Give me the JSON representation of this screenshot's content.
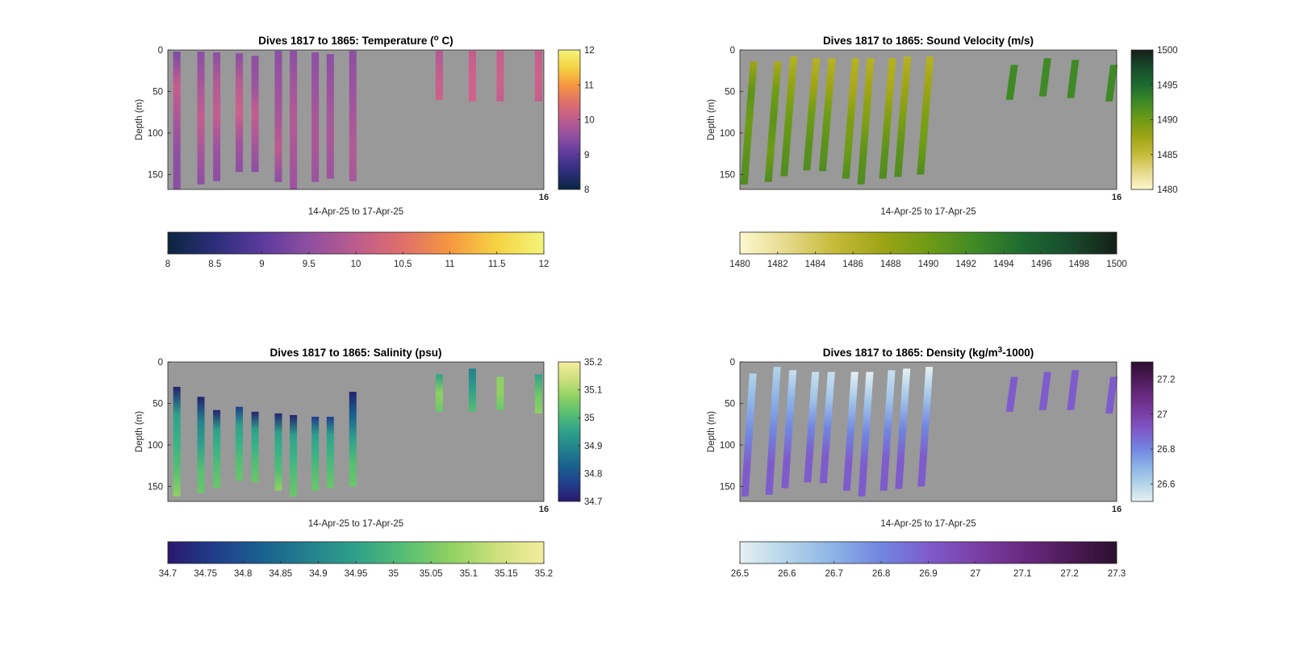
{
  "panels": [
    {
      "title_pre": "Dives 1817 to 1865: Temperature (",
      "title_sup": "o",
      "title_post": " C)",
      "ylabel": "Depth (m)",
      "xlabel": "14-Apr-25 to 17-Apr-25",
      "edge_label": "16",
      "yticks": [
        "0",
        "50",
        "100",
        "150"
      ],
      "cbar_side_ticks": [
        "8",
        "9",
        "10",
        "11",
        "12"
      ],
      "cbar_bottom_ticks": [
        "8",
        "8.5",
        "9",
        "9.5",
        "10",
        "10.5",
        "11",
        "11.5",
        "12"
      ],
      "colormap": [
        "#0b2540",
        "#2c2e7a",
        "#5b3a9c",
        "#8e4fa0",
        "#bd5c8e",
        "#e06f6a",
        "#f6973f",
        "#f5d343",
        "#f3f47a"
      ]
    },
    {
      "title_pre": "Dives 1817 to 1865: Sound Velocity (m/s)",
      "title_sup": "",
      "title_post": "",
      "ylabel": "Depth (m)",
      "xlabel": "14-Apr-25 to 17-Apr-25",
      "edge_label": "16",
      "yticks": [
        "0",
        "50",
        "100",
        "150"
      ],
      "cbar_side_ticks": [
        "1480",
        "1485",
        "1490",
        "1495",
        "1500"
      ],
      "cbar_bottom_ticks": [
        "1480",
        "1482",
        "1484",
        "1486",
        "1488",
        "1490",
        "1492",
        "1494",
        "1496",
        "1498",
        "1500"
      ],
      "colormap": [
        "#fdf8d0",
        "#e5d98a",
        "#c6bb3a",
        "#9ea515",
        "#6f9a16",
        "#3f8a26",
        "#1d6a31",
        "#184b2c",
        "#151f18"
      ]
    },
    {
      "title_pre": "Dives 1817 to 1865: Salinity (psu)",
      "title_sup": "",
      "title_post": "",
      "ylabel": "Depth (m)",
      "xlabel": "14-Apr-25 to 17-Apr-25",
      "edge_label": "16",
      "yticks": [
        "0",
        "50",
        "100",
        "150"
      ],
      "cbar_side_ticks": [
        "34.7",
        "34.8",
        "34.9",
        "35",
        "35.1",
        "35.2"
      ],
      "cbar_bottom_ticks": [
        "34.7",
        "34.75",
        "34.8",
        "34.85",
        "34.9",
        "34.95",
        "35",
        "35.05",
        "35.1",
        "35.15",
        "35.2"
      ],
      "colormap": [
        "#2a186c",
        "#203e8c",
        "#1a6090",
        "#23818d",
        "#2fa08a",
        "#55be74",
        "#8fd163",
        "#cde07c",
        "#f4ed9e"
      ]
    },
    {
      "title_pre": "Dives 1817 to 1865: Density (kg/m",
      "title_sup": "3",
      "title_post": "-1000)",
      "ylabel": "Depth (m)",
      "xlabel": "14-Apr-25 to 17-Apr-25",
      "edge_label": "16",
      "yticks": [
        "0",
        "50",
        "100",
        "150"
      ],
      "cbar_side_ticks": [
        "26.6",
        "26.8",
        "27",
        "27.2"
      ],
      "cbar_bottom_ticks": [
        "26.5",
        "26.6",
        "26.7",
        "26.8",
        "26.9",
        "27",
        "27.1",
        "27.2",
        "27.3"
      ],
      "colormap": [
        "#e6f1f2",
        "#b3d4e8",
        "#8cb3e6",
        "#7186e0",
        "#7e5ccc",
        "#7a40a6",
        "#6a2a82",
        "#4d1b58",
        "#2b0f2e"
      ]
    }
  ],
  "chart_data": [
    {
      "type": "heatmap",
      "title": "Dives 1817 to 1865: Temperature (o C)",
      "xlabel": "14-Apr-25 to 17-Apr-25",
      "ylabel": "Depth (m)",
      "ylim": [
        0,
        168
      ],
      "y_reversed": true,
      "clim": [
        8,
        12
      ],
      "colorbar": [
        "right",
        "bottom"
      ],
      "background": "#999999",
      "x_window": [
        "14-Apr-25",
        "17-Apr-25"
      ],
      "profiles": [
        {
          "x": 0.024,
          "top": 2,
          "bottom": 168,
          "colors": [
            "#7a4aa8",
            "#c55d8d",
            "#a7579a",
            "#8c4fa3",
            "#8a4fa4"
          ]
        },
        {
          "x": 0.088,
          "top": 2,
          "bottom": 162,
          "colors": [
            "#8a4fa4",
            "#a8579b",
            "#c55d8d",
            "#a7579a",
            "#8c4fa3"
          ]
        },
        {
          "x": 0.13,
          "top": 3,
          "bottom": 158,
          "colors": [
            "#8c4fa3",
            "#b25c93",
            "#c25e8e",
            "#9b53a0",
            "#8c4fa3"
          ]
        },
        {
          "x": 0.19,
          "top": 4,
          "bottom": 147,
          "colors": [
            "#8a4fa4",
            "#b85c91",
            "#cd628a",
            "#a1559d",
            "#8c4fa3"
          ]
        },
        {
          "x": 0.232,
          "top": 7,
          "bottom": 147,
          "colors": [
            "#8c4fa3",
            "#9a53a0",
            "#c45e8d",
            "#a7579a",
            "#8c4fa3"
          ]
        },
        {
          "x": 0.294,
          "top": 1,
          "bottom": 159,
          "colors": [
            "#8c4fa3",
            "#9b53a0",
            "#a7579a",
            "#bd5c8f",
            "#8c4fa3"
          ]
        },
        {
          "x": 0.334,
          "top": 1,
          "bottom": 168,
          "colors": [
            "#8c4fa3",
            "#a3569c",
            "#b25b94",
            "#a7579a",
            "#9a53a0"
          ]
        },
        {
          "x": 0.392,
          "top": 3,
          "bottom": 159,
          "colors": [
            "#8c4fa3",
            "#9a53a0",
            "#a7579a",
            "#a7579a",
            "#9a53a0"
          ]
        },
        {
          "x": 0.432,
          "top": 5,
          "bottom": 155,
          "colors": [
            "#8c4fa3",
            "#9a53a0",
            "#a7579a",
            "#a7579a",
            "#9a53a0"
          ]
        },
        {
          "x": 0.492,
          "top": 1,
          "bottom": 158,
          "colors": [
            "#8c4fa3",
            "#9a53a0",
            "#a7579a",
            "#b25b94",
            "#a7579a"
          ]
        },
        {
          "x": 0.722,
          "top": 1,
          "bottom": 60,
          "colors": [
            "#b25b94",
            "#c55d8d",
            "#cd628a"
          ]
        },
        {
          "x": 0.81,
          "top": 1,
          "bottom": 62,
          "colors": [
            "#c55d8d",
            "#cd628a",
            "#cd628a"
          ]
        },
        {
          "x": 0.884,
          "top": 1,
          "bottom": 62,
          "colors": [
            "#c55d8d",
            "#cd628a",
            "#c55d8d"
          ]
        },
        {
          "x": 0.986,
          "top": 1,
          "bottom": 62,
          "colors": [
            "#c55d8d",
            "#cd628a",
            "#c55d8d"
          ]
        }
      ]
    },
    {
      "type": "heatmap",
      "title": "Dives 1817 to 1865: Sound Velocity (m/s)",
      "xlabel": "14-Apr-25 to 17-Apr-25",
      "ylabel": "Depth (m)",
      "ylim": [
        0,
        168
      ],
      "y_reversed": true,
      "clim": [
        1480,
        1500
      ],
      "colorbar": [
        "right",
        "bottom"
      ],
      "background": "#999999",
      "x_window": [
        "14-Apr-25",
        "17-Apr-25"
      ],
      "profiles": [
        {
          "x": 0.024,
          "top": 14,
          "bottom": 162,
          "slant": 12,
          "colors": [
            "#9ea515",
            "#5d931b",
            "#6e9c16",
            "#5d931b",
            "#4f8c20"
          ]
        },
        {
          "x": 0.088,
          "top": 14,
          "bottom": 159,
          "slant": 12,
          "colors": [
            "#a9a91a",
            "#6e9c16",
            "#5d931b",
            "#6e9c16",
            "#4f8c20"
          ]
        },
        {
          "x": 0.13,
          "top": 8,
          "bottom": 152,
          "slant": 12,
          "colors": [
            "#b6b222",
            "#8ea412",
            "#6e9c16",
            "#5d931b",
            "#4f8c20"
          ]
        },
        {
          "x": 0.19,
          "top": 10,
          "bottom": 145,
          "slant": 12,
          "colors": [
            "#b6b222",
            "#9ea515",
            "#6e9c16",
            "#5d931b",
            "#4f8c20"
          ]
        },
        {
          "x": 0.232,
          "top": 10,
          "bottom": 146,
          "slant": 12,
          "colors": [
            "#b6b222",
            "#9ea515",
            "#6e9c16",
            "#5d931b",
            "#4f8c20"
          ]
        },
        {
          "x": 0.294,
          "top": 10,
          "bottom": 155,
          "slant": 12,
          "colors": [
            "#b6b222",
            "#a9a91a",
            "#7f9f14",
            "#6e9c16",
            "#4f8c20"
          ]
        },
        {
          "x": 0.334,
          "top": 10,
          "bottom": 162,
          "slant": 12,
          "colors": [
            "#b6b222",
            "#9ea515",
            "#7f9f14",
            "#5d931b",
            "#4f8c20"
          ]
        },
        {
          "x": 0.392,
          "top": 10,
          "bottom": 155,
          "slant": 12,
          "colors": [
            "#b6b222",
            "#a9a91a",
            "#7f9f14",
            "#5d931b",
            "#4f8c20"
          ]
        },
        {
          "x": 0.432,
          "top": 8,
          "bottom": 153,
          "slant": 12,
          "colors": [
            "#b6b222",
            "#9ea515",
            "#7f9f14",
            "#5d931b",
            "#4f8c20"
          ]
        },
        {
          "x": 0.492,
          "top": 8,
          "bottom": 150,
          "slant": 12,
          "colors": [
            "#b6b222",
            "#9ea515",
            "#7f9f14",
            "#6e9c16",
            "#4f8c20"
          ]
        },
        {
          "x": 0.722,
          "top": 18,
          "bottom": 60,
          "slant": 6,
          "colors": [
            "#3f8a26",
            "#3f8a26",
            "#3f8a26"
          ]
        },
        {
          "x": 0.81,
          "top": 10,
          "bottom": 56,
          "slant": 6,
          "colors": [
            "#3f8a26",
            "#3f8a26",
            "#3f8a26"
          ]
        },
        {
          "x": 0.884,
          "top": 12,
          "bottom": 58,
          "slant": 6,
          "colors": [
            "#3f8a26",
            "#3f8a26",
            "#3f8a26"
          ]
        },
        {
          "x": 0.986,
          "top": 18,
          "bottom": 62,
          "slant": 6,
          "colors": [
            "#3f8a26",
            "#3f8a26",
            "#3f8a26"
          ]
        }
      ]
    },
    {
      "type": "heatmap",
      "title": "Dives 1817 to 1865: Salinity (psu)",
      "xlabel": "14-Apr-25 to 17-Apr-25",
      "ylabel": "Depth (m)",
      "ylim": [
        0,
        168
      ],
      "y_reversed": true,
      "clim": [
        34.7,
        35.2
      ],
      "colorbar": [
        "right",
        "bottom"
      ],
      "background": "#999999",
      "x_window": [
        "14-Apr-25",
        "17-Apr-25"
      ],
      "profiles": [
        {
          "x": 0.024,
          "top": 30,
          "bottom": 162,
          "colors": [
            "#23226f",
            "#2fa08a",
            "#3ab387",
            "#55be74",
            "#8fd163"
          ]
        },
        {
          "x": 0.088,
          "top": 42,
          "bottom": 158,
          "colors": [
            "#23226f",
            "#23818d",
            "#2fa08a",
            "#55be74",
            "#6ac76a"
          ]
        },
        {
          "x": 0.13,
          "top": 58,
          "bottom": 152,
          "colors": [
            "#23226f",
            "#2fa08a",
            "#3ab387",
            "#55be74",
            "#6ac76a"
          ]
        },
        {
          "x": 0.19,
          "top": 54,
          "bottom": 143,
          "colors": [
            "#203e8c",
            "#2fa08a",
            "#3ab387",
            "#55be74",
            "#6ac76a"
          ]
        },
        {
          "x": 0.232,
          "top": 60,
          "bottom": 145,
          "colors": [
            "#23226f",
            "#2fa08a",
            "#3ab387",
            "#55be74",
            "#6ac76a"
          ]
        },
        {
          "x": 0.294,
          "top": 62,
          "bottom": 155,
          "colors": [
            "#23226f",
            "#2fa08a",
            "#3ab387",
            "#55be74",
            "#8fd163"
          ]
        },
        {
          "x": 0.334,
          "top": 64,
          "bottom": 162,
          "colors": [
            "#23226f",
            "#2fa08a",
            "#3ab387",
            "#55be74",
            "#6ac76a"
          ]
        },
        {
          "x": 0.392,
          "top": 66,
          "bottom": 155,
          "colors": [
            "#203e8c",
            "#2fa08a",
            "#3ab387",
            "#55be74",
            "#6ac76a"
          ]
        },
        {
          "x": 0.432,
          "top": 66,
          "bottom": 152,
          "colors": [
            "#203e8c",
            "#2fa08a",
            "#3ab387",
            "#55be74",
            "#6ac76a"
          ]
        },
        {
          "x": 0.492,
          "top": 36,
          "bottom": 150,
          "colors": [
            "#23226f",
            "#1a6090",
            "#2fa08a",
            "#55be74",
            "#6ac76a"
          ]
        },
        {
          "x": 0.722,
          "top": 15,
          "bottom": 60,
          "colors": [
            "#2fa08a",
            "#8fd163",
            "#6ac76a"
          ]
        },
        {
          "x": 0.81,
          "top": 8,
          "bottom": 60,
          "colors": [
            "#23818d",
            "#2fa08a",
            "#55be74"
          ]
        },
        {
          "x": 0.884,
          "top": 18,
          "bottom": 58,
          "colors": [
            "#8fd163",
            "#8fd163",
            "#6ac76a"
          ]
        },
        {
          "x": 0.986,
          "top": 15,
          "bottom": 62,
          "colors": [
            "#2fa08a",
            "#6ac76a",
            "#8fd163"
          ]
        }
      ]
    },
    {
      "type": "heatmap",
      "title": "Dives 1817 to 1865: Density (kg/m3-1000)",
      "xlabel": "14-Apr-25 to 17-Apr-25",
      "ylabel": "Depth (m)",
      "ylim": [
        0,
        168
      ],
      "y_reversed": true,
      "clim": [
        26.5,
        27.3
      ],
      "colorbar": [
        "right",
        "bottom"
      ],
      "background": "#999999",
      "x_window": [
        "14-Apr-25",
        "17-Apr-25"
      ],
      "profiles": [
        {
          "x": 0.024,
          "top": 14,
          "bottom": 162,
          "slant": 10,
          "colors": [
            "#b3d4e8",
            "#8cb3e6",
            "#7186e0",
            "#7e5ccc",
            "#7e5ccc"
          ]
        },
        {
          "x": 0.088,
          "top": 6,
          "bottom": 160,
          "slant": 10,
          "colors": [
            "#b3d4e8",
            "#8cb3e6",
            "#7186e0",
            "#7e5ccc",
            "#7e5ccc"
          ]
        },
        {
          "x": 0.13,
          "top": 10,
          "bottom": 152,
          "slant": 10,
          "colors": [
            "#c8e0ee",
            "#8cb3e6",
            "#7186e0",
            "#7e5ccc",
            "#7e5ccc"
          ]
        },
        {
          "x": 0.19,
          "top": 12,
          "bottom": 145,
          "slant": 10,
          "colors": [
            "#c8e0ee",
            "#a0c4e8",
            "#7186e0",
            "#7e5ccc",
            "#7e5ccc"
          ]
        },
        {
          "x": 0.232,
          "top": 12,
          "bottom": 146,
          "slant": 10,
          "colors": [
            "#c8e0ee",
            "#a0c4e8",
            "#7186e0",
            "#7e5ccc",
            "#7e5ccc"
          ]
        },
        {
          "x": 0.294,
          "top": 12,
          "bottom": 155,
          "slant": 10,
          "colors": [
            "#e6f1f2",
            "#a0c4e8",
            "#7186e0",
            "#7e5ccc",
            "#7e5ccc"
          ]
        },
        {
          "x": 0.334,
          "top": 12,
          "bottom": 162,
          "slant": 10,
          "colors": [
            "#e6f1f2",
            "#a0c4e8",
            "#7186e0",
            "#7e5ccc",
            "#7e5ccc"
          ]
        },
        {
          "x": 0.392,
          "top": 10,
          "bottom": 155,
          "slant": 10,
          "colors": [
            "#c8e0ee",
            "#a0c4e8",
            "#7186e0",
            "#7e5ccc",
            "#7e5ccc"
          ]
        },
        {
          "x": 0.432,
          "top": 8,
          "bottom": 153,
          "slant": 10,
          "colors": [
            "#e6f1f2",
            "#a0c4e8",
            "#7186e0",
            "#7e5ccc",
            "#7e5ccc"
          ]
        },
        {
          "x": 0.492,
          "top": 6,
          "bottom": 150,
          "slant": 10,
          "colors": [
            "#e6f1f2",
            "#a0c4e8",
            "#7186e0",
            "#7e5ccc",
            "#7e5ccc"
          ]
        },
        {
          "x": 0.722,
          "top": 18,
          "bottom": 60,
          "slant": 6,
          "colors": [
            "#7e5ccc",
            "#7e5ccc",
            "#7e5ccc"
          ]
        },
        {
          "x": 0.81,
          "top": 12,
          "bottom": 58,
          "slant": 6,
          "colors": [
            "#7e5ccc",
            "#7e5ccc",
            "#7e5ccc"
          ]
        },
        {
          "x": 0.884,
          "top": 10,
          "bottom": 58,
          "slant": 6,
          "colors": [
            "#7e5ccc",
            "#7e5ccc",
            "#7e5ccc"
          ]
        },
        {
          "x": 0.986,
          "top": 18,
          "bottom": 62,
          "slant": 6,
          "colors": [
            "#7e5ccc",
            "#7e5ccc",
            "#7e5ccc"
          ]
        }
      ]
    }
  ]
}
